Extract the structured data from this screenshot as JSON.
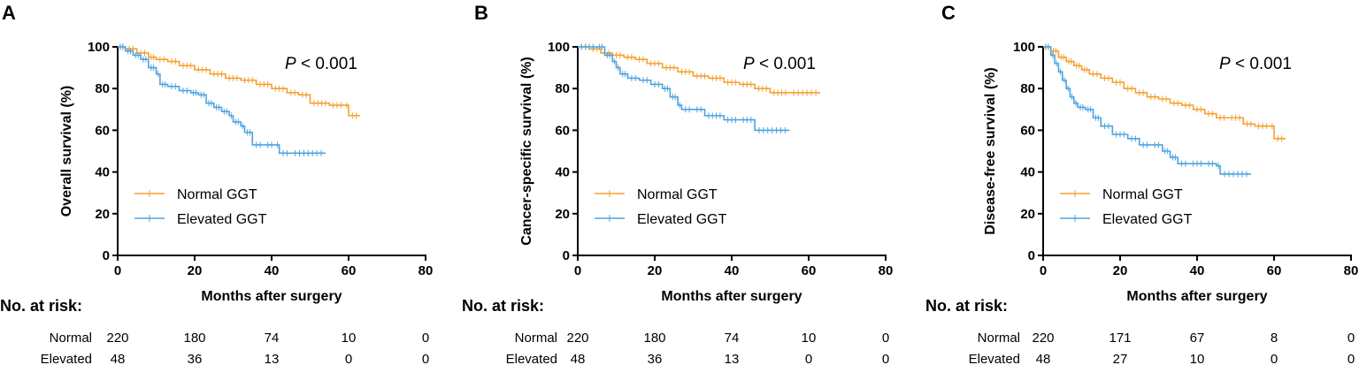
{
  "chart_data": [
    {
      "type": "line",
      "panel": "A",
      "ylabel": "Overall survival (%)",
      "xlabel": "Months after surgery",
      "xlim": [
        0,
        80
      ],
      "ylim": [
        0,
        100
      ],
      "xticks": [
        "0",
        "20",
        "40",
        "60",
        "80"
      ],
      "yticks": [
        "0",
        "20",
        "40",
        "60",
        "80",
        "100"
      ],
      "pvalue": {
        "symbol": "P",
        "text": " < 0.001"
      },
      "series": [
        {
          "name": "Normal GGT",
          "color": "#F5A030",
          "x": [
            0,
            2,
            5,
            8,
            10,
            13,
            16,
            20,
            24,
            28,
            32,
            36,
            40,
            44,
            47,
            50,
            55,
            59,
            60,
            63
          ],
          "y": [
            100,
            99,
            97,
            95,
            94,
            93,
            91,
            89,
            87,
            85,
            84,
            82,
            80,
            78,
            77,
            73,
            72,
            72,
            67,
            67
          ]
        },
        {
          "name": "Elevated GGT",
          "color": "#4DA3E0",
          "x": [
            0,
            2,
            4,
            6,
            8,
            10,
            11,
            13,
            16,
            19,
            21,
            23,
            25,
            27,
            29,
            30,
            32,
            33,
            35,
            38,
            41,
            42,
            45,
            54
          ],
          "y": [
            100,
            98,
            96,
            94,
            90,
            87,
            82,
            81,
            79,
            78,
            77,
            73,
            71,
            69,
            67,
            64,
            62,
            59,
            53,
            53,
            53,
            49,
            49,
            49
          ]
        }
      ],
      "risk_table": {
        "title": "No. at risk:",
        "rows": [
          {
            "label": "Normal",
            "values": [
              "220",
              "180",
              "74",
              "10",
              "0"
            ]
          },
          {
            "label": "Elevated",
            "values": [
              "48",
              "36",
              "13",
              "0",
              "0"
            ]
          }
        ]
      }
    },
    {
      "type": "line",
      "panel": "B",
      "ylabel": "Cancer-specific survival (%)",
      "xlabel": "Months after surgery",
      "xlim": [
        0,
        80
      ],
      "ylim": [
        0,
        100
      ],
      "xticks": [
        "0",
        "20",
        "40",
        "60",
        "80"
      ],
      "yticks": [
        "0",
        "20",
        "40",
        "60",
        "80",
        "100"
      ],
      "pvalue": {
        "symbol": "P",
        "text": " < 0.001"
      },
      "series": [
        {
          "name": "Normal GGT",
          "color": "#F5A030",
          "x": [
            0,
            3,
            6,
            9,
            12,
            15,
            18,
            22,
            26,
            30,
            34,
            38,
            42,
            46,
            50,
            55,
            63
          ],
          "y": [
            100,
            99,
            97,
            96,
            95,
            94,
            92,
            90,
            88,
            86,
            85,
            83,
            82,
            80,
            78,
            78,
            78
          ]
        },
        {
          "name": "Elevated GGT",
          "color": "#4DA3E0",
          "x": [
            0,
            5,
            7,
            9,
            10,
            11,
            13,
            16,
            19,
            22,
            24,
            26,
            27,
            30,
            33,
            38,
            42,
            46,
            55
          ],
          "y": [
            100,
            100,
            96,
            93,
            90,
            87,
            85,
            84,
            82,
            80,
            76,
            72,
            70,
            70,
            67,
            65,
            65,
            60,
            60
          ]
        }
      ],
      "risk_table": {
        "title": "No. at risk:",
        "rows": [
          {
            "label": "Normal",
            "values": [
              "220",
              "180",
              "74",
              "10",
              "0"
            ]
          },
          {
            "label": "Elevated",
            "values": [
              "48",
              "36",
              "13",
              "0",
              "0"
            ]
          }
        ]
      }
    },
    {
      "type": "line",
      "panel": "C",
      "ylabel": "Disease-free survival (%)",
      "xlabel": "Months after surgery",
      "xlim": [
        0,
        80
      ],
      "ylim": [
        0,
        100
      ],
      "xticks": [
        "0",
        "20",
        "40",
        "60",
        "80"
      ],
      "yticks": [
        "0",
        "20",
        "40",
        "60",
        "80",
        "100"
      ],
      "pvalue": {
        "symbol": "P",
        "text": " < 0.001"
      },
      "series": [
        {
          "name": "Normal GGT",
          "color": "#F5A030",
          "x": [
            0,
            2,
            4,
            6,
            8,
            10,
            12,
            15,
            18,
            21,
            24,
            27,
            30,
            33,
            36,
            39,
            42,
            45,
            48,
            52,
            55,
            59,
            60,
            63
          ],
          "y": [
            100,
            98,
            95,
            93,
            91,
            89,
            87,
            85,
            83,
            80,
            78,
            76,
            75,
            73,
            72,
            70,
            68,
            66,
            66,
            63,
            62,
            62,
            56,
            56
          ]
        },
        {
          "name": "Elevated GGT",
          "color": "#4DA3E0",
          "x": [
            0,
            2,
            3,
            4,
            5,
            6,
            7,
            8,
            9,
            11,
            13,
            15,
            18,
            22,
            25,
            28,
            31,
            33,
            35,
            38,
            42,
            45,
            46,
            54
          ],
          "y": [
            100,
            96,
            92,
            88,
            84,
            80,
            76,
            73,
            71,
            70,
            66,
            62,
            58,
            56,
            53,
            53,
            50,
            47,
            44,
            44,
            44,
            43,
            39,
            39
          ]
        }
      ],
      "risk_table": {
        "title": "No. at risk:",
        "rows": [
          {
            "label": "Normal",
            "values": [
              "220",
              "171",
              "67",
              "8",
              "0"
            ]
          },
          {
            "label": "Elevated",
            "values": [
              "48",
              "27",
              "10",
              "0",
              "0"
            ]
          }
        ]
      }
    }
  ]
}
